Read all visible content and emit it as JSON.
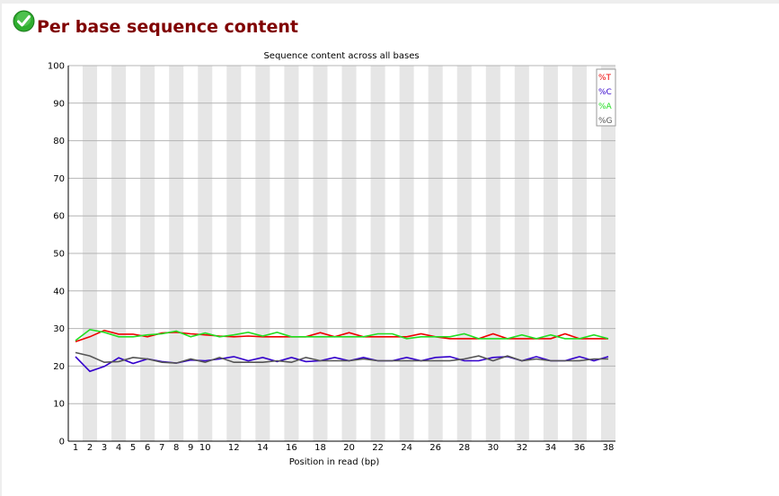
{
  "module": {
    "title": "Per base sequence content",
    "status_icon": "pass-check-icon",
    "status_color": "#22aa22",
    "title_color": "#800000"
  },
  "chart_data": {
    "type": "line",
    "title": "Sequence content across all bases",
    "xlabel": "Position in read (bp)",
    "ylabel": "",
    "ylim": [
      0,
      100
    ],
    "yticks": [
      "0",
      "10",
      "20",
      "30",
      "40",
      "50",
      "60",
      "70",
      "80",
      "90",
      "100"
    ],
    "categories": [
      "1",
      "2",
      "3",
      "4",
      "5",
      "6",
      "7",
      "8",
      "9",
      "10",
      "11",
      "12",
      "13",
      "14",
      "15",
      "16",
      "17",
      "18",
      "19",
      "20",
      "21",
      "22",
      "23",
      "24",
      "25",
      "26",
      "27",
      "28",
      "29",
      "30",
      "31",
      "32",
      "33",
      "34",
      "35",
      "36",
      "37",
      "38"
    ],
    "category_labels": [
      "1",
      "2",
      "3",
      "4",
      "5",
      "6",
      "7",
      "8",
      "9",
      "10",
      "",
      "12",
      "",
      "14",
      "",
      "16",
      "",
      "18",
      "",
      "20",
      "",
      "22",
      "",
      "24",
      "",
      "26",
      "",
      "28",
      "",
      "30",
      "",
      "32",
      "",
      "34",
      "",
      "36",
      "",
      "38"
    ],
    "grid": true,
    "legend_position": "top-right",
    "series": [
      {
        "name": "%T",
        "color": "#ee0000",
        "values": [
          26.5,
          27.8,
          29.5,
          28.5,
          28.5,
          27.8,
          28.8,
          29.0,
          28.6,
          28.3,
          28.0,
          27.8,
          28.0,
          27.8,
          27.8,
          27.8,
          27.8,
          28.9,
          27.8,
          28.9,
          27.8,
          27.8,
          27.8,
          27.8,
          28.6,
          27.8,
          27.3,
          27.3,
          27.3,
          28.6,
          27.3,
          27.3,
          27.3,
          27.3,
          28.6,
          27.3,
          27.3,
          27.3
        ]
      },
      {
        "name": "%C",
        "color": "#3300cc",
        "values": [
          22.5,
          18.6,
          19.9,
          22.2,
          20.7,
          21.9,
          21.2,
          20.8,
          21.6,
          21.4,
          21.9,
          22.5,
          21.4,
          22.3,
          21.2,
          22.3,
          21.2,
          21.4,
          22.3,
          21.4,
          22.3,
          21.4,
          21.4,
          22.3,
          21.4,
          22.3,
          22.5,
          21.4,
          21.4,
          22.3,
          22.5,
          21.4,
          22.5,
          21.4,
          21.4,
          22.5,
          21.4,
          22.5
        ]
      },
      {
        "name": "%A",
        "color": "#22dd22",
        "values": [
          26.8,
          29.7,
          29.0,
          27.8,
          27.8,
          28.3,
          28.6,
          29.3,
          27.8,
          28.8,
          27.8,
          28.3,
          29.0,
          28.0,
          29.0,
          27.8,
          27.8,
          27.8,
          27.8,
          27.8,
          27.8,
          28.6,
          28.6,
          27.3,
          27.8,
          27.8,
          27.8,
          28.6,
          27.3,
          27.3,
          27.3,
          28.3,
          27.3,
          28.3,
          27.3,
          27.3,
          28.3,
          27.3
        ]
      },
      {
        "name": "%G",
        "color": "#555555",
        "values": [
          23.6,
          22.7,
          21.0,
          21.2,
          22.3,
          21.9,
          21.0,
          20.8,
          21.9,
          21.0,
          22.3,
          21.0,
          21.0,
          21.0,
          21.4,
          21.0,
          22.3,
          21.4,
          21.4,
          21.4,
          21.9,
          21.4,
          21.4,
          21.4,
          21.4,
          21.4,
          21.4,
          21.9,
          22.7,
          21.4,
          22.7,
          21.4,
          21.9,
          21.4,
          21.4,
          21.4,
          21.9,
          21.9
        ]
      }
    ]
  }
}
